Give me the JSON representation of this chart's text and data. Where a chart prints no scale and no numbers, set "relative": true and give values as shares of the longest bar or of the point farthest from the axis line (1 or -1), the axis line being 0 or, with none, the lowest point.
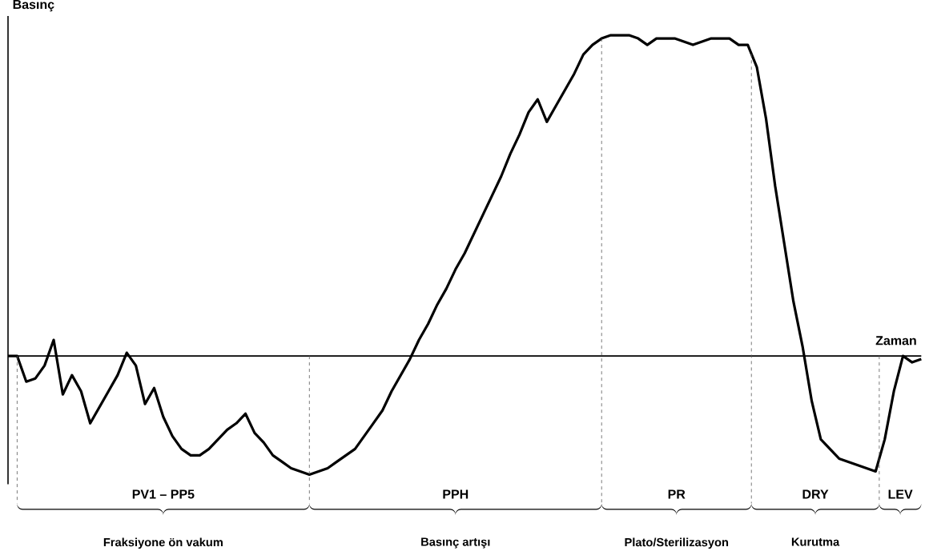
{
  "chart_data": {
    "type": "line",
    "relative": true,
    "xlabel": "Zaman",
    "ylabel": "Basınç",
    "color": "#000000",
    "categories": [
      null,
      null,
      null,
      null,
      null,
      null,
      null,
      null,
      null,
      null,
      null,
      null,
      null,
      null,
      null,
      null,
      null,
      null,
      null,
      null,
      null,
      null,
      null,
      null,
      null,
      null,
      null,
      null,
      null,
      null,
      null,
      null,
      null,
      null,
      null,
      null,
      null,
      null,
      null,
      null,
      null,
      null,
      null,
      null,
      null,
      null,
      null,
      null,
      null,
      null,
      null,
      null,
      null,
      null,
      null,
      null,
      null,
      null,
      null,
      null,
      null,
      null,
      null,
      null,
      null,
      null,
      null,
      null,
      null,
      null,
      null,
      null,
      null,
      null,
      null,
      null,
      null,
      null,
      null,
      null,
      null,
      null,
      null,
      null,
      null,
      null,
      null,
      null,
      null,
      null,
      null,
      null,
      null,
      null,
      null,
      null,
      null,
      null,
      null,
      null,
      null
    ],
    "values": [
      0,
      0,
      -0.08,
      -0.07,
      -0.03,
      0.05,
      -0.12,
      -0.06,
      -0.11,
      -0.21,
      -0.16,
      -0.11,
      -0.06,
      0.01,
      -0.03,
      -0.15,
      -0.1,
      -0.19,
      -0.25,
      -0.29,
      -0.31,
      -0.31,
      -0.29,
      -0.26,
      -0.23,
      -0.21,
      -0.18,
      -0.24,
      -0.27,
      -0.31,
      -0.33,
      -0.35,
      -0.36,
      -0.37,
      -0.36,
      -0.35,
      -0.33,
      -0.31,
      -0.29,
      -0.25,
      -0.21,
      -0.17,
      -0.11,
      -0.06,
      -0.01,
      0.05,
      0.1,
      0.16,
      0.21,
      0.27,
      0.32,
      0.38,
      0.44,
      0.5,
      0.56,
      0.63,
      0.69,
      0.76,
      0.8,
      0.73,
      0.78,
      0.83,
      0.88,
      0.94,
      0.97,
      0.99,
      1.0,
      1.0,
      1.0,
      0.99,
      0.97,
      0.99,
      0.99,
      0.99,
      0.98,
      0.97,
      0.98,
      0.99,
      0.99,
      0.99,
      0.97,
      0.97,
      0.9,
      0.74,
      0.53,
      0.35,
      0.17,
      0.03,
      -0.14,
      -0.26,
      -0.29,
      -0.32,
      -0.33,
      -0.34,
      -0.35,
      -0.36,
      -0.26,
      -0.11,
      0.0,
      -0.02,
      -0.01
    ],
    "annotations": [
      "PV1 – PP5",
      "PPH",
      "PR",
      "DRY",
      "LEV",
      "Fraksiyone ön vakum",
      "Basınç artışı",
      "Plato/Sterilizasyon",
      "Kurutma"
    ]
  }
}
